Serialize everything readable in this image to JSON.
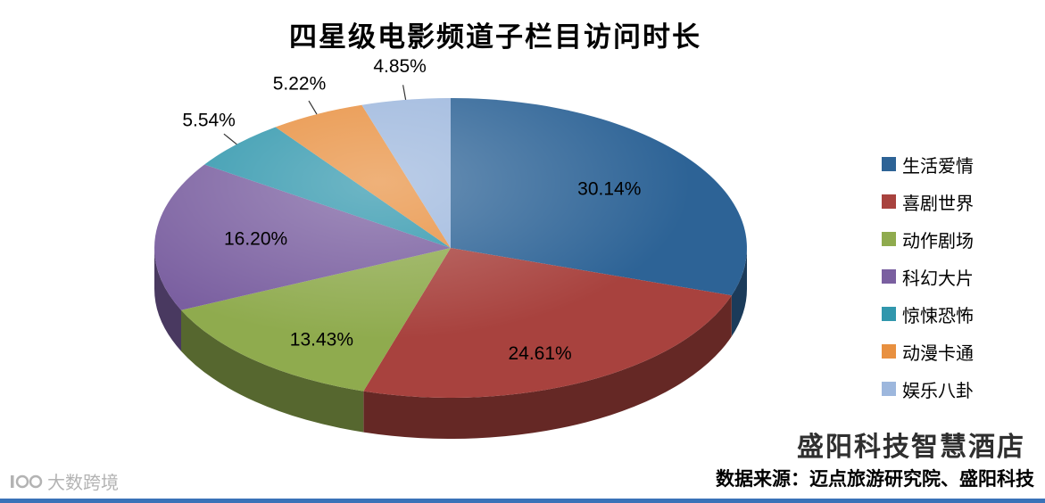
{
  "page": {
    "brand_text": "盛阳科技智慧酒店",
    "source_note": "数据来源：迈点旅游研究院、盛阳科技",
    "watermark_text": "大数跨境",
    "accent_bar_color": "#3a72b8"
  },
  "chart_data": {
    "type": "pie",
    "effect": "3d",
    "title": "四星级电影频道子栏目访问时长",
    "unit": "%",
    "legend_position": "right",
    "start_angle_deg": 0,
    "direction": "clockwise",
    "label_format": "percent-2-decimals",
    "slices": [
      {
        "label": "生活爱情",
        "value": 30.14,
        "color": "#2d6396"
      },
      {
        "label": "喜剧世界",
        "value": 24.61,
        "color": "#a8423e"
      },
      {
        "label": "动作剧场",
        "value": 13.43,
        "color": "#8fab4e"
      },
      {
        "label": "科幻大片",
        "value": 16.2,
        "color": "#7a5fa0"
      },
      {
        "label": "惊悚恐怖",
        "value": 5.54,
        "color": "#3197ad"
      },
      {
        "label": "动漫卡通",
        "value": 5.22,
        "color": "#e89040"
      },
      {
        "label": "娱乐八卦",
        "value": 4.85,
        "color": "#9db7dd"
      }
    ]
  }
}
